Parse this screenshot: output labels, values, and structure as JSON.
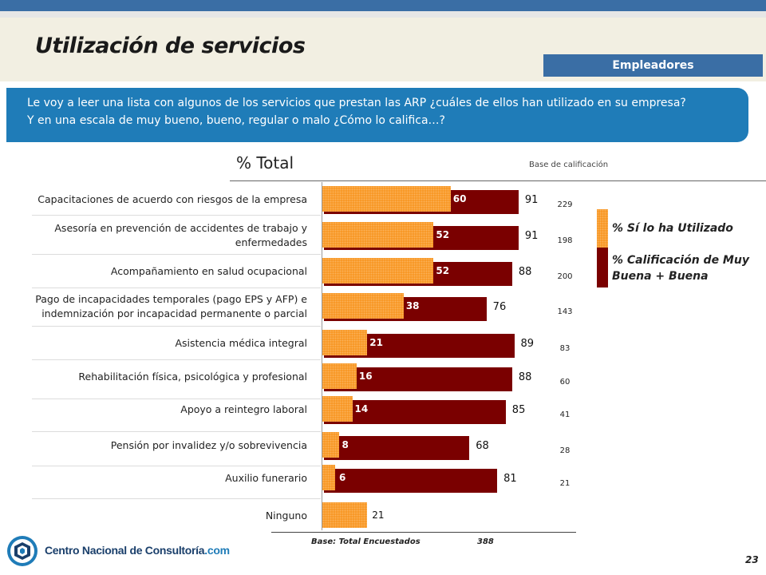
{
  "header": {
    "title": "Utilización de servicios",
    "segment": "Empleadores"
  },
  "question": {
    "line1": "Le voy a leer una lista con algunos de los servicios que prestan las ARP ¿cuáles de ellos han utilizado en su empresa?",
    "line2": "Y en una escala de muy bueno, bueno, regular o malo ¿Cómo lo califica…?"
  },
  "table_header": {
    "total": "% Total",
    "base_label": "Base de calificación"
  },
  "legend": {
    "used": "% Sí lo ha Utilizado",
    "rating": "% Calificación de Muy Buena + Buena"
  },
  "footer": {
    "base_label": "Base: Total Encuestados",
    "base_n": "388",
    "page": "23",
    "logo_main": "Centro Nacional de Consultoría",
    "logo_dotcom": ".com"
  },
  "colors": {
    "used": "#f7941d",
    "rating": "#7a0000",
    "accent": "#1f7cb8"
  },
  "chart_data": {
    "type": "bar",
    "title": "% Total",
    "categories": [
      "Capacitaciones de acuerdo con riesgos de la empresa",
      "Asesoría en prevención de accidentes de trabajo y enfermedades",
      "Acompañamiento en salud ocupacional",
      "Pago de incapacidades temporales (pago EPS y AFP) e indemnización por incapacidad permanente o parcial",
      "Asistencia médica integral",
      "Rehabilitación física, psicológica y profesional",
      "Apoyo a reintegro laboral",
      "Pensión por invalidez y/o sobrevivencia",
      "Auxilio funerario",
      "Ninguno"
    ],
    "series": [
      {
        "name": "% Sí lo ha Utilizado",
        "values": [
          60,
          52,
          52,
          38,
          21,
          16,
          14,
          8,
          6,
          21
        ]
      },
      {
        "name": "% Calificación de Muy Buena + Buena",
        "values": [
          91,
          91,
          88,
          76,
          89,
          88,
          85,
          68,
          81,
          null
        ]
      }
    ],
    "base": [
      "229",
      "198",
      "200",
      "143",
      "83",
      "60",
      "41",
      "28",
      "21",
      ""
    ],
    "xlim": [
      0,
      100
    ],
    "legend": "right"
  }
}
